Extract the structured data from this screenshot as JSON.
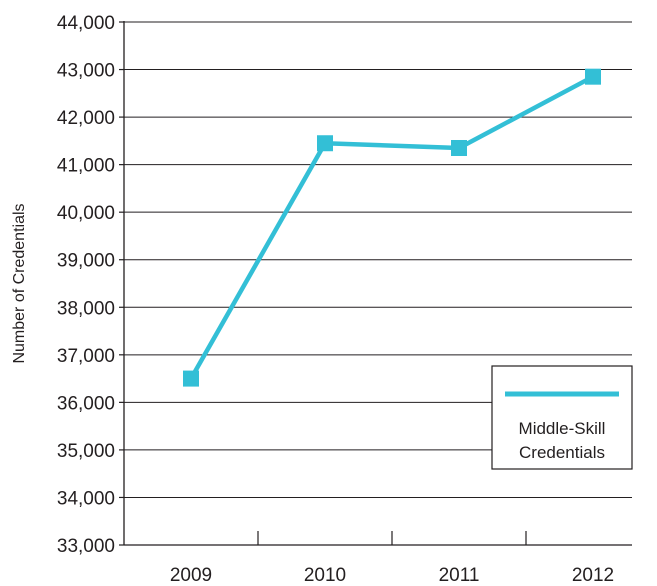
{
  "chart_data": {
    "type": "line",
    "title": "",
    "xlabel": "",
    "ylabel": "Number of Credentials",
    "categories": [
      "2009",
      "2010",
      "2011",
      "2012"
    ],
    "series": [
      {
        "name": "Middle-Skill Credentials",
        "values": [
          36500,
          41450,
          41350,
          42850
        ],
        "color": "#33bfd6"
      }
    ],
    "yticks": [
      "33,000",
      "34,000",
      "35,000",
      "36,000",
      "37,000",
      "38,000",
      "39,000",
      "40,000",
      "41,000",
      "42,000",
      "43,000",
      "44,000"
    ],
    "ylim": [
      33000,
      44000
    ],
    "grid": "horizontal",
    "legend": {
      "position": "bottom-right",
      "label_line1": "Middle-Skill",
      "label_line2": "Credentials"
    }
  }
}
